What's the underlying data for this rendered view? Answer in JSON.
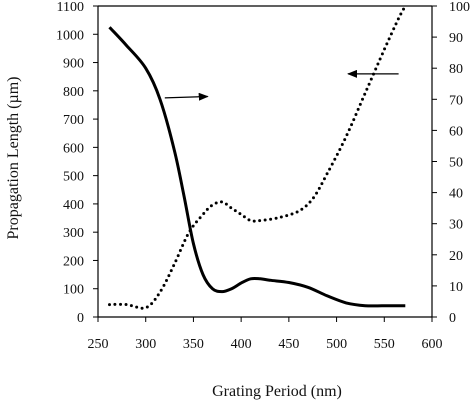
{
  "chart_data": {
    "type": "line",
    "title": "",
    "xlabel": "Grating Period (nm)",
    "ylabel": "Propagation Length (µm)",
    "y2label": "",
    "xlim": [
      250,
      600
    ],
    "ylim": [
      0,
      1100
    ],
    "y2lim": [
      0,
      100
    ],
    "x_ticks": [
      250,
      300,
      350,
      400,
      450,
      500,
      550,
      600
    ],
    "y_ticks": [
      0,
      100,
      200,
      300,
      400,
      500,
      600,
      700,
      800,
      900,
      1000,
      1100
    ],
    "y2_ticks": [
      0,
      10,
      20,
      30,
      40,
      50,
      60,
      70,
      80,
      90,
      100
    ],
    "grid": false,
    "legend": "none",
    "series": [
      {
        "axis": "left",
        "style": "solid",
        "color": "#000000",
        "x": [
          262,
          280,
          300,
          315,
          330,
          340,
          350,
          360,
          370,
          380,
          390,
          400,
          410,
          420,
          430,
          450,
          470,
          490,
          510,
          530,
          550,
          572
        ],
        "y": [
          1025,
          960,
          880,
          770,
          590,
          430,
          260,
          150,
          100,
          90,
          100,
          120,
          135,
          135,
          130,
          122,
          105,
          75,
          50,
          40,
          40,
          40
        ]
      },
      {
        "axis": "right",
        "style": "dotted",
        "color": "#000000",
        "x": [
          262,
          280,
          300,
          315,
          330,
          345,
          360,
          370,
          380,
          390,
          400,
          410,
          420,
          440,
          460,
          475,
          490,
          510,
          530,
          550,
          565,
          572
        ],
        "y": [
          4,
          4,
          3,
          8,
          17,
          27,
          33,
          36,
          37,
          35,
          33,
          31,
          31,
          32,
          34,
          38,
          46,
          58,
          72,
          86,
          96,
          100
        ]
      }
    ],
    "annotations": [
      {
        "type": "arrow",
        "direction": "right",
        "x1": 320,
        "y1": 775,
        "x2": 365,
        "y2": 780
      },
      {
        "type": "arrow",
        "direction": "left",
        "x1": 565,
        "y1": 860,
        "x2": 512,
        "y2": 860
      }
    ]
  }
}
